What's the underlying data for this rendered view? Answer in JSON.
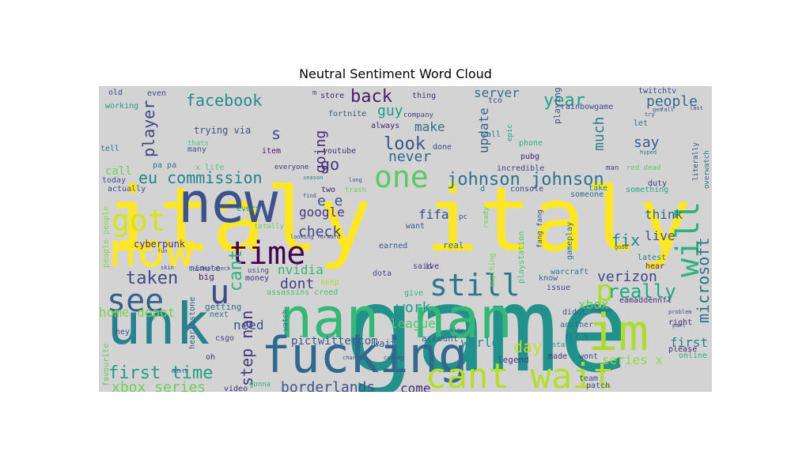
{
  "chart_data": {
    "type": "wordcloud",
    "title": "Neutral Sentiment Word Cloud",
    "background": "#d3d3d3",
    "colormap": "viridis",
    "words": [
      {
        "text": "game",
        "color": "#21918c"
      },
      {
        "text": "italy italy",
        "color": "#fde725"
      },
      {
        "text": "new",
        "color": "#3b528b"
      },
      {
        "text": "now",
        "color": "#fde725"
      },
      {
        "text": "unk",
        "color": "#26828e"
      },
      {
        "text": "nan nan",
        "color": "#35b779"
      },
      {
        "text": "fucking",
        "color": "#31688e"
      },
      {
        "text": "im",
        "color": "#addc30"
      },
      {
        "text": "cant wait",
        "color": "#b5de2b"
      },
      {
        "text": "time",
        "color": "#440154"
      },
      {
        "text": "one",
        "color": "#5ec962"
      },
      {
        "text": "got",
        "color": "#d8e219"
      },
      {
        "text": "see",
        "color": "#355f8d"
      },
      {
        "text": "still",
        "color": "#2a788e"
      },
      {
        "text": "will",
        "color": "#2db27d"
      },
      {
        "text": "u",
        "color": "#3e4a89"
      },
      {
        "text": "p",
        "color": "#addc30"
      },
      {
        "text": "really",
        "color": "#22a884"
      },
      {
        "text": "taken",
        "color": "#3e4989"
      },
      {
        "text": "first time",
        "color": "#1f9e89"
      },
      {
        "text": "xbox series",
        "color": "#6ece58"
      },
      {
        "text": "johnson johnson",
        "color": "#2c728e"
      },
      {
        "text": "eu commission",
        "color": "#25838e"
      },
      {
        "text": "facebook",
        "color": "#238a8d"
      },
      {
        "text": "back",
        "color": "#481a6c"
      },
      {
        "text": "look",
        "color": "#38588c"
      },
      {
        "text": "step nan",
        "color": "#453781"
      },
      {
        "text": "cant",
        "color": "#2fb47c"
      },
      {
        "text": "going",
        "color": "#482878"
      },
      {
        "text": "player",
        "color": "#414487"
      },
      {
        "text": "year",
        "color": "#20a386"
      },
      {
        "text": "people",
        "color": "#31688e"
      },
      {
        "text": "say",
        "color": "#365c8d"
      },
      {
        "text": "much",
        "color": "#287d8e"
      },
      {
        "text": "microsoft",
        "color": "#2c728e"
      },
      {
        "text": "verizon",
        "color": "#3f4788"
      },
      {
        "text": "fix",
        "color": "#24868e"
      },
      {
        "text": "live",
        "color": "#3b528b"
      },
      {
        "text": "think",
        "color": "#33638d"
      },
      {
        "text": "xbox",
        "color": "#5ec962"
      },
      {
        "text": "day",
        "color": "#c0df25"
      },
      {
        "text": "work",
        "color": "#1f9a8a"
      },
      {
        "text": "league",
        "color": "#52c569"
      },
      {
        "text": "gta",
        "color": "#277f8e"
      },
      {
        "text": "first",
        "color": "#26828e"
      },
      {
        "text": "series x",
        "color": "#95d840"
      },
      {
        "text": "borderlands",
        "color": "#3b528b"
      },
      {
        "text": "come",
        "color": "#472d7b"
      },
      {
        "text": "world",
        "color": "#21918c"
      },
      {
        "text": "check",
        "color": "#3e4989"
      },
      {
        "text": "google",
        "color": "#46337e"
      },
      {
        "text": "nvidia",
        "color": "#35b779"
      },
      {
        "text": "dont",
        "color": "#424086"
      },
      {
        "text": "need",
        "color": "#3b528b"
      },
      {
        "text": "home depot",
        "color": "#7ad151"
      },
      {
        "text": "fifa",
        "color": "#3c4f8a"
      },
      {
        "text": "go",
        "color": "#44397f"
      },
      {
        "text": "never",
        "color": "#306a8e"
      },
      {
        "text": "make",
        "color": "#2d708e"
      },
      {
        "text": "guy",
        "color": "#1e9b8a"
      },
      {
        "text": "s",
        "color": "#414487"
      },
      {
        "text": "e e",
        "color": "#3a548c"
      },
      {
        "text": "update",
        "color": "#33638d"
      },
      {
        "text": "server",
        "color": "#2e6f8e"
      },
      {
        "text": "call",
        "color": "#6ece58"
      },
      {
        "text": "pictwittercom",
        "color": "#39568c"
      },
      {
        "text": "wait",
        "color": "#34608d"
      },
      {
        "text": "account",
        "color": "#355e8d"
      },
      {
        "text": "legend",
        "color": "#443983"
      },
      {
        "text": "playing",
        "color": "#3d4e8a"
      },
      {
        "text": "rainbowgame",
        "color": "#3e4a89"
      },
      {
        "text": "twitchtv",
        "color": "#3b528b"
      },
      {
        "text": "fortnite",
        "color": "#38598c"
      },
      {
        "text": "youtube",
        "color": "#46327e"
      },
      {
        "text": "trying via",
        "color": "#3b528b"
      },
      {
        "text": "cyberpunk",
        "color": "#472f7d"
      },
      {
        "text": "money",
        "color": "#46307e"
      },
      {
        "text": "minute",
        "color": "#3d4d8a"
      },
      {
        "text": "big",
        "color": "#481d6f"
      },
      {
        "text": "getting",
        "color": "#2e6e8e"
      },
      {
        "text": "hearthstone",
        "color": "#34618d"
      },
      {
        "text": "csgo",
        "color": "#433e85"
      },
      {
        "text": "video",
        "color": "#472c7a"
      },
      {
        "text": "favourite",
        "color": "#5ec962"
      },
      {
        "text": "people people",
        "color": "#8bd646"
      },
      {
        "text": "incredible",
        "color": "#433d84"
      },
      {
        "text": "console",
        "color": "#3f4788"
      },
      {
        "text": "gameplay",
        "color": "#2d718e"
      },
      {
        "text": "playstation",
        "color": "#4ac16d"
      },
      {
        "text": "warcraft",
        "color": "#2a778e"
      },
      {
        "text": "eamaddennfl",
        "color": "#472a7a"
      },
      {
        "text": "dota",
        "color": "#3e4c8a"
      },
      {
        "text": "earned",
        "color": "#39568c"
      },
      {
        "text": "real",
        "color": "#306a8e"
      },
      {
        "text": "want",
        "color": "#3b528b"
      },
      {
        "text": "said",
        "color": "#414487"
      },
      {
        "text": "ive",
        "color": "#481f70"
      },
      {
        "text": "give",
        "color": "#35b779"
      },
      {
        "text": "know",
        "color": "#31688e"
      },
      {
        "text": "issue",
        "color": "#3e4989"
      },
      {
        "text": "didnt",
        "color": "#3b518b"
      },
      {
        "text": "another",
        "color": "#2e6e8e"
      },
      {
        "text": "made",
        "color": "#45337d"
      },
      {
        "text": "wont",
        "color": "#3d4d8a"
      },
      {
        "text": "team",
        "color": "#3d4d8a"
      },
      {
        "text": "patch",
        "color": "#3e4989"
      },
      {
        "text": "please",
        "color": "#482475"
      },
      {
        "text": "online",
        "color": "#2db27d"
      },
      {
        "text": "right",
        "color": "#482677"
      },
      {
        "text": "hear",
        "color": "#481b6d"
      },
      {
        "text": "latest",
        "color": "#25838e"
      },
      {
        "text": "duty",
        "color": "#443a83"
      },
      {
        "text": "literally",
        "color": "#3e4c8a"
      },
      {
        "text": "overwatch",
        "color": "#2c738e"
      },
      {
        "text": "something",
        "color": "#21a585"
      },
      {
        "text": "someone",
        "color": "#2d708e"
      },
      {
        "text": "take",
        "color": "#24868e"
      },
      {
        "text": "let",
        "color": "#2e6f8e"
      },
      {
        "text": "pubg",
        "color": "#481c6e"
      },
      {
        "text": "phone",
        "color": "#2ab07f"
      },
      {
        "text": "yall",
        "color": "#287d8e"
      },
      {
        "text": "epic",
        "color": "#1fa187"
      },
      {
        "text": "tco",
        "color": "#3e4989"
      },
      {
        "text": "always",
        "color": "#482173"
      },
      {
        "text": "company",
        "color": "#3f4889"
      },
      {
        "text": "done",
        "color": "#3d4d8a"
      },
      {
        "text": "thing",
        "color": "#46327e"
      },
      {
        "text": "store",
        "color": "#482475"
      },
      {
        "text": "m",
        "color": "#3b528b"
      },
      {
        "text": "old",
        "color": "#3e4a89"
      },
      {
        "text": "even",
        "color": "#3e4989"
      },
      {
        "text": "working",
        "color": "#1e9b8a"
      },
      {
        "text": "tell",
        "color": "#2a778e"
      },
      {
        "text": "many",
        "color": "#3b528b"
      },
      {
        "text": "thats",
        "color": "#52c569"
      },
      {
        "text": "pa pa",
        "color": "#2a788e"
      },
      {
        "text": "item",
        "color": "#481769"
      },
      {
        "text": "everyone",
        "color": "#46337e"
      },
      {
        "text": "x life",
        "color": "#5ec962"
      },
      {
        "text": "today",
        "color": "#3b528b"
      },
      {
        "text": "actually",
        "color": "#3e4c8a"
      },
      {
        "text": "two",
        "color": "#481c6e"
      },
      {
        "text": "every",
        "color": "#1f988b"
      },
      {
        "text": "using",
        "color": "#3e4a89"
      },
      {
        "text": "assassins creed",
        "color": "#4ac16d"
      },
      {
        "text": "keep",
        "color": "#addc30"
      },
      {
        "text": "next",
        "color": "#2c728e"
      },
      {
        "text": "hey",
        "color": "#3f4889"
      },
      {
        "text": "oh",
        "color": "#472d7b"
      },
      {
        "text": "watch",
        "color": "#32648e"
      },
      {
        "text": "gonna",
        "color": "#2db27d"
      },
      {
        "text": "d",
        "color": "#2c738e"
      },
      {
        "text": "pc",
        "color": "#3a548c"
      },
      {
        "text": "red dead",
        "color": "#5ec962"
      },
      {
        "text": "man",
        "color": "#423f85"
      },
      {
        "text": "trash",
        "color": "#6ece58"
      },
      {
        "text": "ready",
        "color": "#6ece58"
      },
      {
        "text": "fang fang",
        "color": "#3b528b"
      },
      {
        "text": "anything",
        "color": "#7ad151"
      },
      {
        "text": "start",
        "color": "#21918c"
      },
      {
        "text": "hyped",
        "color": "#2c738e"
      },
      {
        "text": "totally",
        "color": "#6ece58"
      },
      {
        "text": "long",
        "color": "#3e4a89"
      },
      {
        "text": "season",
        "color": "#26828e"
      },
      {
        "text": "find",
        "color": "#3b528b"
      },
      {
        "text": "looking forward",
        "color": "#3e4a89"
      },
      {
        "text": "video check",
        "color": "#3b528b"
      },
      {
        "text": "skin",
        "color": "#3e4a89"
      },
      {
        "text": "fun",
        "color": "#3b528b"
      },
      {
        "text": "month",
        "color": "#3b528b"
      },
      {
        "text": "coming",
        "color": "#3e4a89"
      },
      {
        "text": "change",
        "color": "#3b528b"
      },
      {
        "text": "slow",
        "color": "#3e4a89"
      },
      {
        "text": "good",
        "color": "#3b528b"
      },
      {
        "text": "last",
        "color": "#3e4a89"
      },
      {
        "text": "part",
        "color": "#3b528b"
      },
      {
        "text": "problem",
        "color": "#3e4a89"
      },
      {
        "text": "reason",
        "color": "#3b528b"
      },
      {
        "text": "try",
        "color": "#3e4a89"
      },
      {
        "text": "gen",
        "color": "#3b528b"
      },
      {
        "text": "fall",
        "color": "#3e4a89"
      }
    ]
  }
}
